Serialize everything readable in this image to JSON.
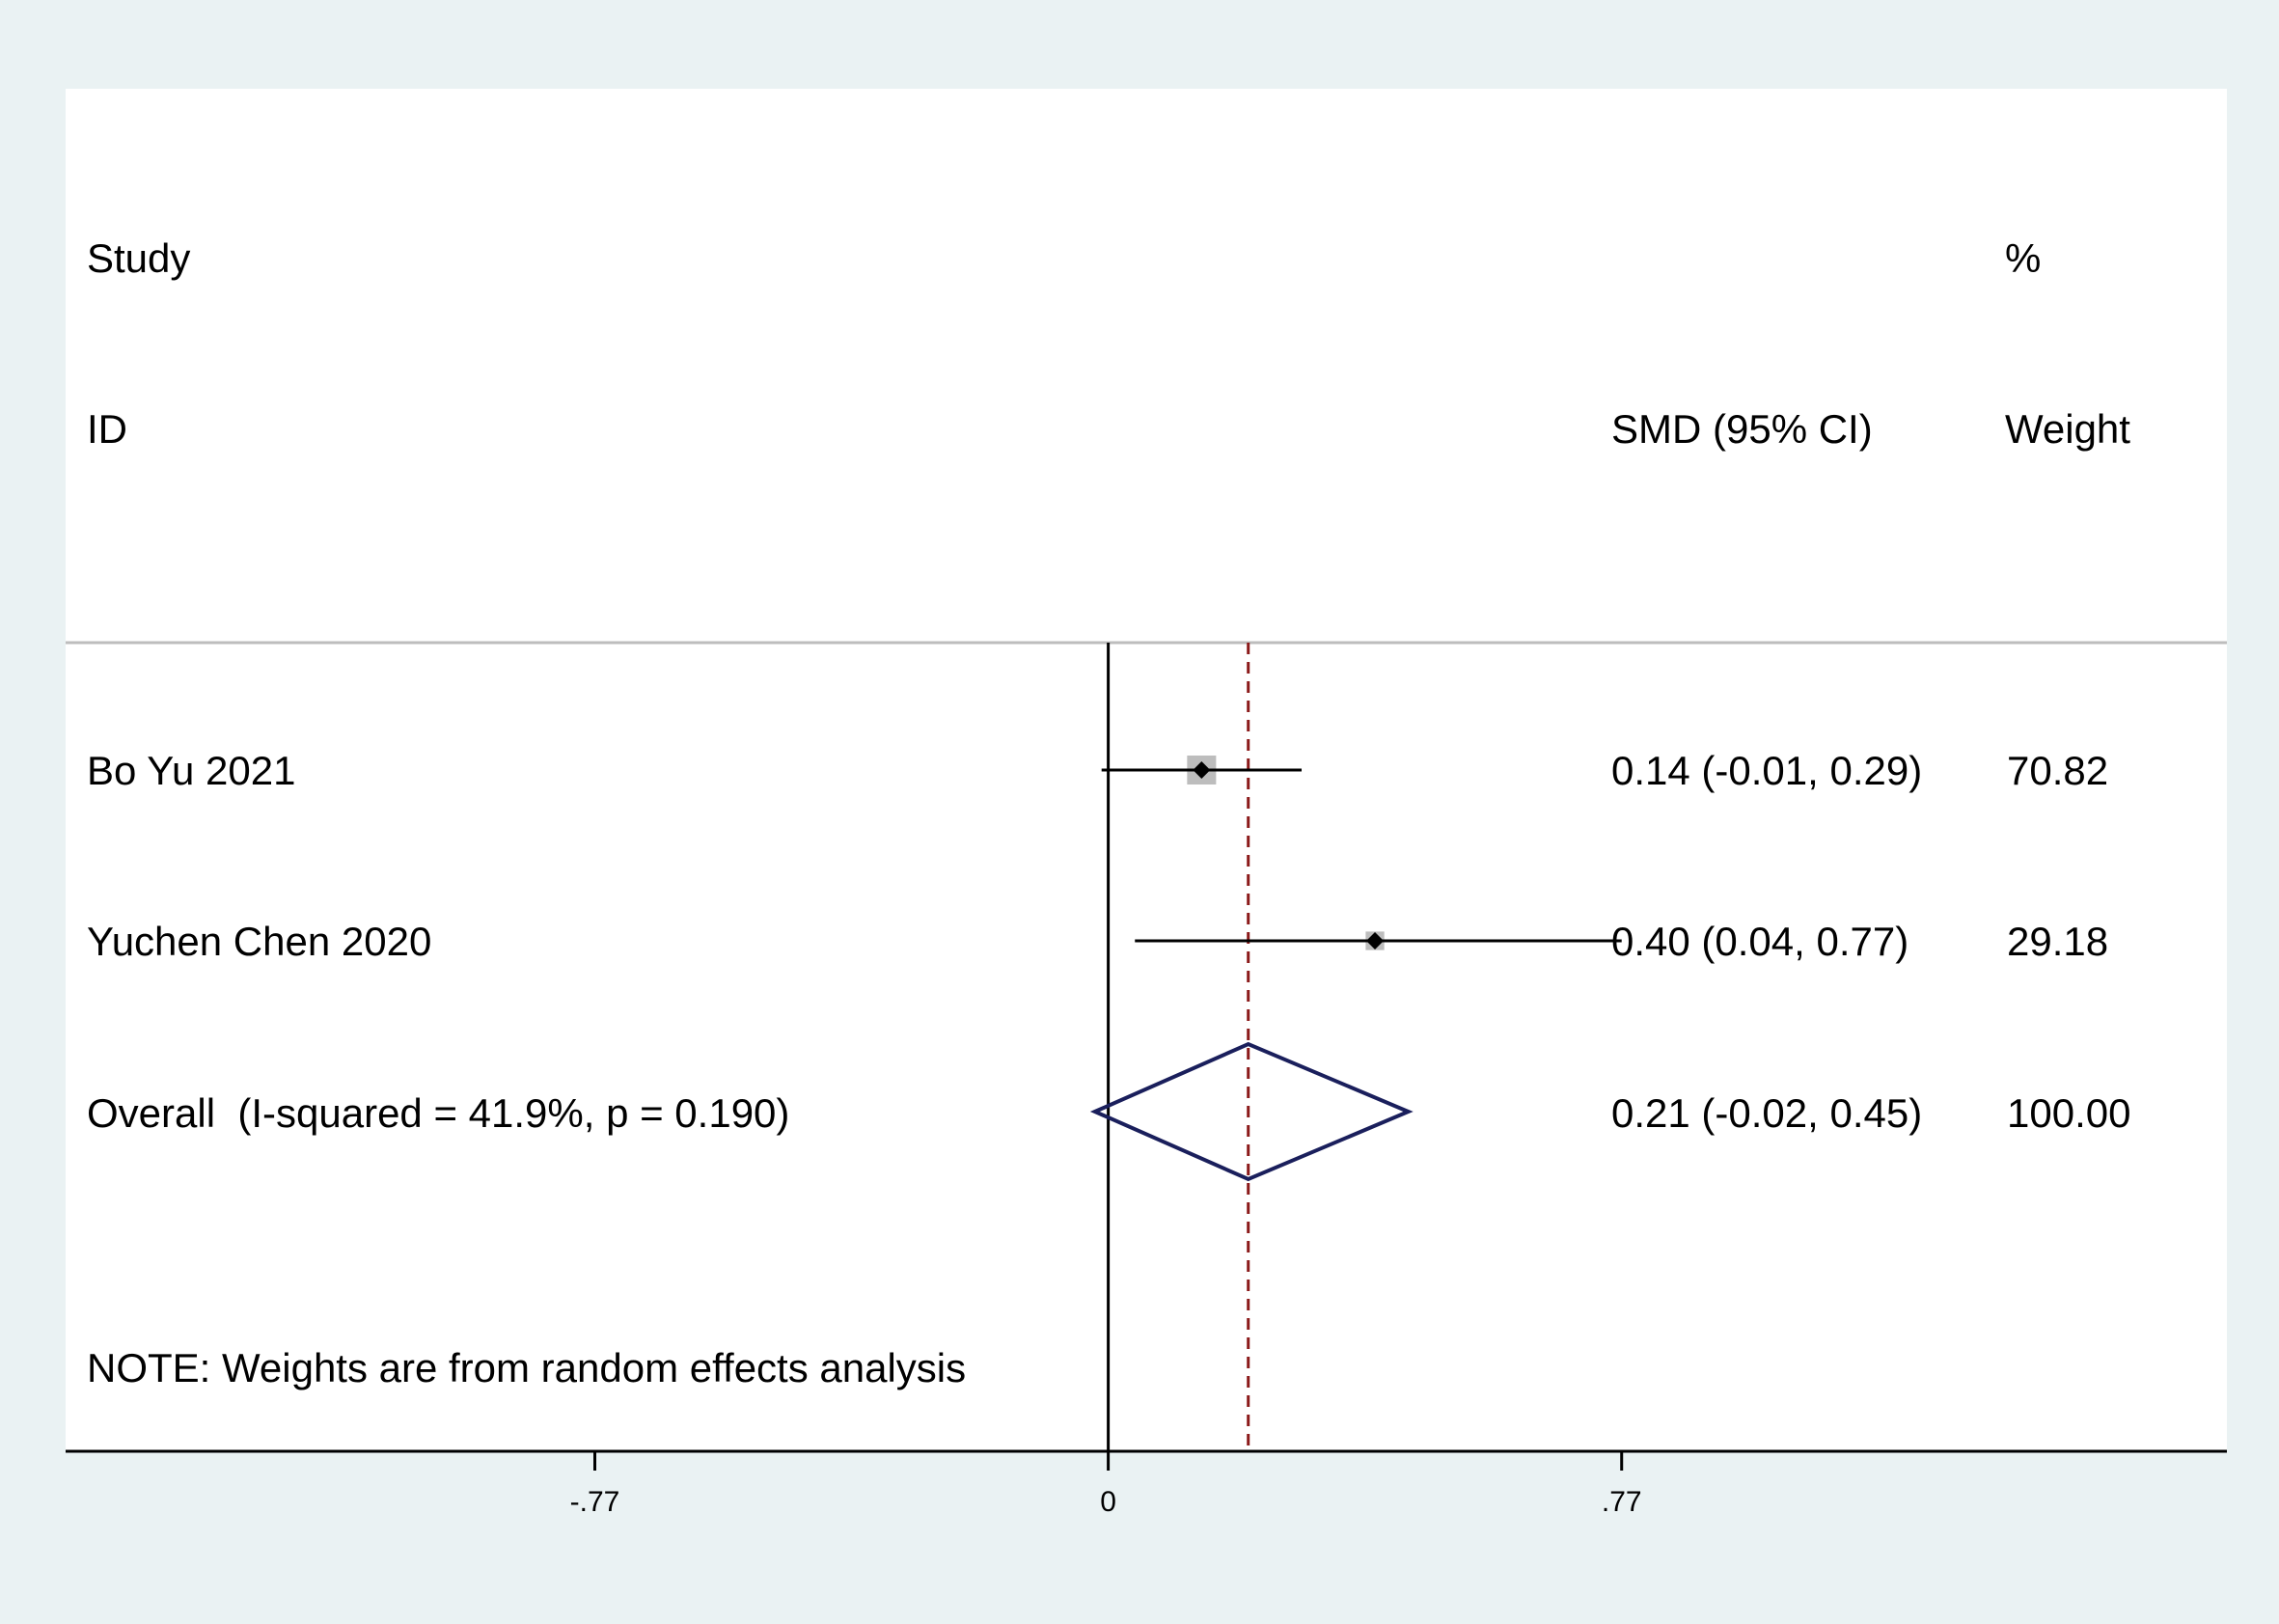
{
  "chart_data": {
    "type": "forest",
    "header": {
      "study_line1": "Study",
      "study_line2": "ID",
      "effect_label": "SMD (95% CI)",
      "weight_line1": "%",
      "weight_line2": "Weight"
    },
    "studies": [
      {
        "id": "Bo Yu 2021",
        "smd": 0.14,
        "ci_low": -0.01,
        "ci_high": 0.29,
        "ci_text": "0.14 (-0.01, 0.29)",
        "weight": 70.82,
        "weight_text": "70.82"
      },
      {
        "id": "Yuchen Chen 2020",
        "smd": 0.4,
        "ci_low": 0.04,
        "ci_high": 0.77,
        "ci_text": "0.40 (0.04, 0.77)",
        "weight": 29.18,
        "weight_text": "29.18"
      }
    ],
    "overall": {
      "label": "Overall  (I-squared = 41.9%, p = 0.190)",
      "smd": 0.21,
      "ci_low": -0.02,
      "ci_high": 0.45,
      "ci_text": "0.21 (-0.02, 0.45)",
      "weight_text": "100.00"
    },
    "note": "NOTE: Weights are from random effects analysis",
    "xaxis": {
      "range": [
        -1.5637,
        1.6777
      ],
      "ticks": [
        -0.77,
        0,
        0.77
      ],
      "tick_labels": [
        "-.77",
        "0",
        ".77"
      ]
    },
    "null_line": 0,
    "colors": {
      "background": "#eaf2f3",
      "plot_bg": "#ffffff",
      "ci_line": "#000000",
      "weight_box": "#bdbdbd",
      "diamond": "#1a1f5c",
      "overall_line": "#8b1a1a",
      "separator": "#bdbdbd"
    }
  }
}
